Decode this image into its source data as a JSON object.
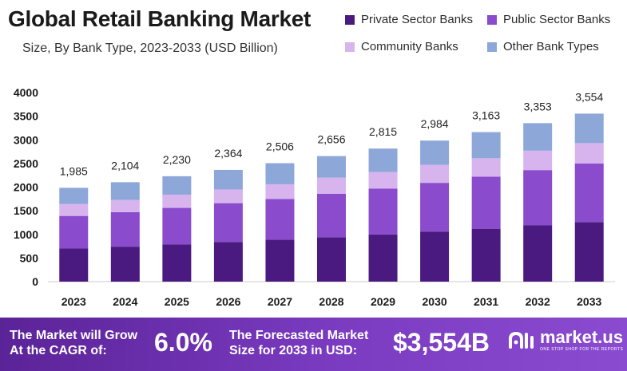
{
  "header": {
    "title": "Global Retail Banking Market",
    "subtitle": "Size, By Bank Type, 2023-2033 (USD Billion)"
  },
  "colors": {
    "private": "#4a1a80",
    "public": "#8a4ccc",
    "community": "#d7b4ee",
    "other": "#8ea7d9",
    "banner_start": "#5b2398",
    "banner_end": "#8a4bd0"
  },
  "chart_data": {
    "type": "bar",
    "stacked": true,
    "categories": [
      "2023",
      "2024",
      "2025",
      "2026",
      "2027",
      "2028",
      "2029",
      "2030",
      "2031",
      "2032",
      "2033"
    ],
    "series": [
      {
        "name": "Private Sector Banks",
        "color": "#4a1a80",
        "values": [
          700,
          740,
          790,
          840,
          890,
          940,
          1000,
          1060,
          1120,
          1190,
          1260
        ]
      },
      {
        "name": "Public Sector Banks",
        "color": "#8a4ccc",
        "values": [
          690,
          730,
          770,
          820,
          860,
          920,
          970,
          1030,
          1100,
          1170,
          1240
        ]
      },
      {
        "name": "Community Banks",
        "color": "#d7b4ee",
        "values": [
          255,
          260,
          280,
          290,
          310,
          340,
          350,
          380,
          390,
          410,
          430
        ]
      },
      {
        "name": "Other Bank Types",
        "color": "#8ea7d9",
        "values": [
          340,
          374,
          390,
          414,
          446,
          456,
          495,
          514,
          553,
          583,
          624
        ]
      }
    ],
    "totals": [
      "1,985",
      "2,104",
      "2,230",
      "2,364",
      "2,506",
      "2,656",
      "2,815",
      "2,984",
      "3,163",
      "3,353",
      "3,554"
    ],
    "y_ticks": [
      0,
      500,
      1000,
      1500,
      2000,
      2500,
      3000,
      3500,
      4000
    ],
    "ylim": [
      0,
      4000
    ],
    "grid": false,
    "legend_position": "top-right"
  },
  "banner": {
    "cagr_text_line1": "The Market will Grow",
    "cagr_text_line2": "At the CAGR of:",
    "cagr_value": "6.0%",
    "forecast_text_line1": "The Forecasted Market",
    "forecast_text_line2": "Size for 2033 in USD:",
    "forecast_value": "$3,554B"
  },
  "logo": {
    "name": "market.us",
    "tagline": "ONE STOP SHOP FOR THE REPORTS",
    "icon": "market-us-logo-icon"
  }
}
